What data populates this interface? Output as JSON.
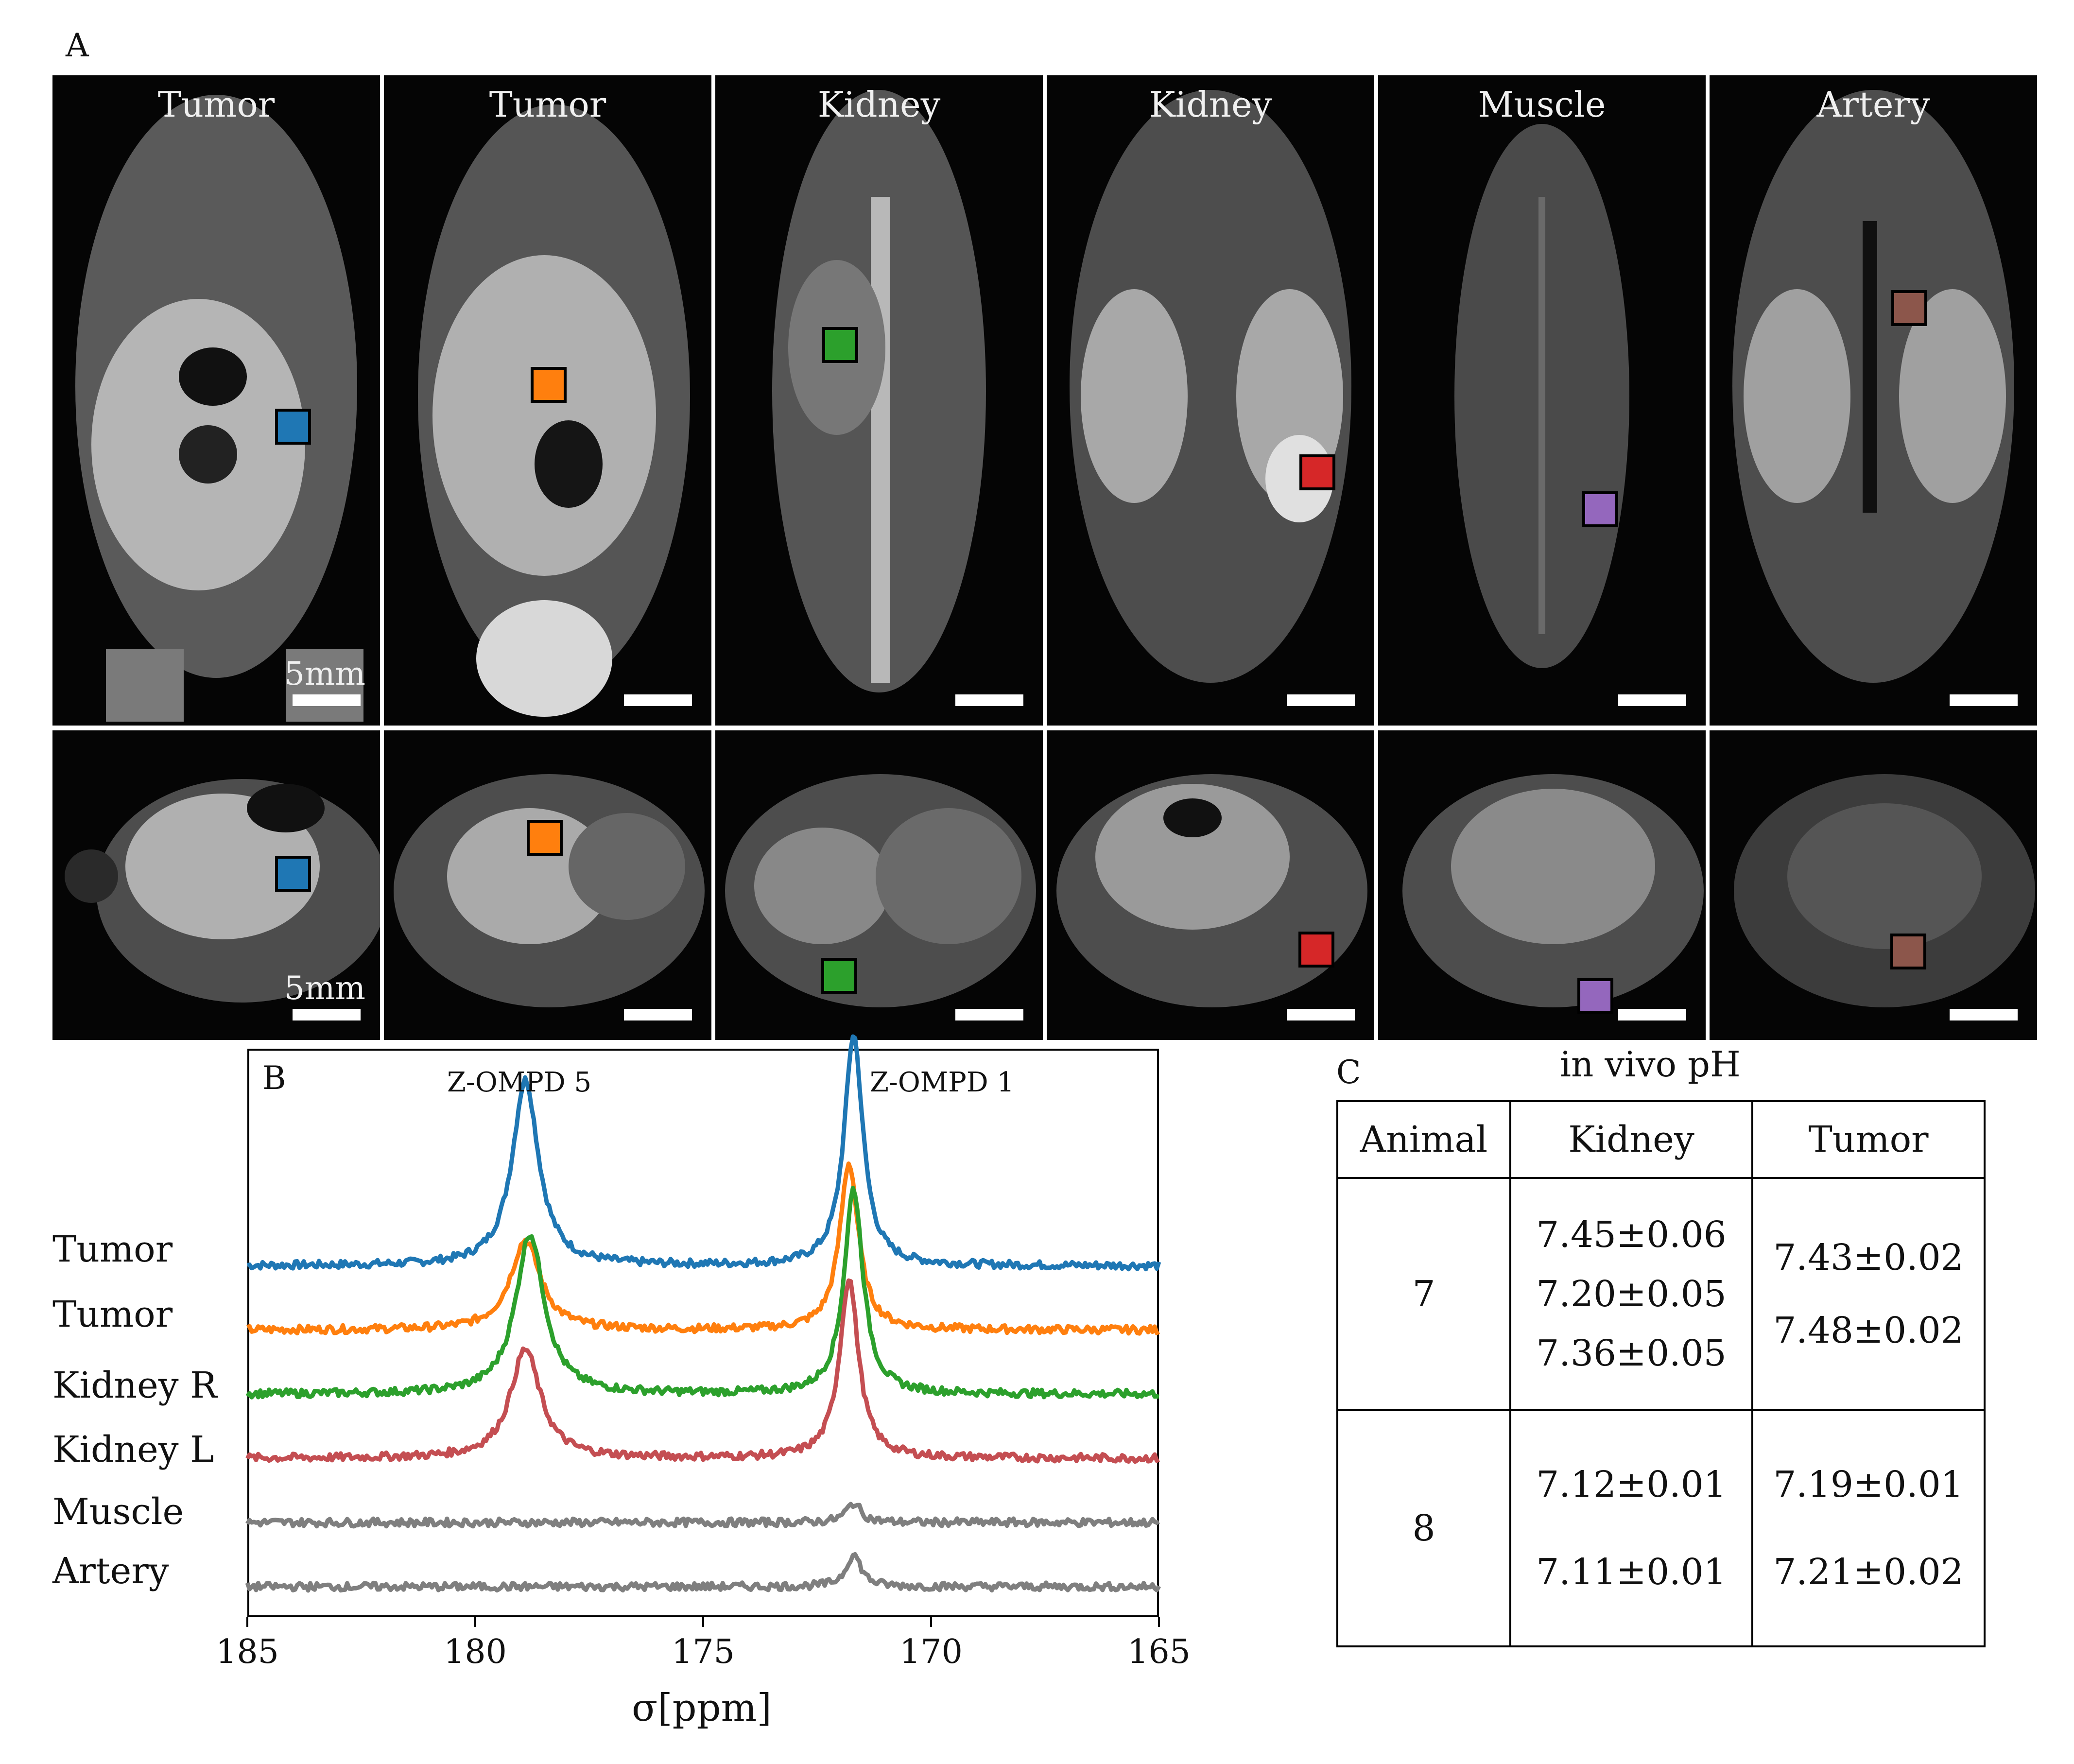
{
  "panel_a": {
    "letter": "A",
    "top_row_labels": [
      "Tumor",
      "Tumor",
      "Kidney",
      "Kidney",
      "Muscle",
      "Artery"
    ],
    "scale_label_top": "5mm",
    "scale_label_bottom": "5mm",
    "roi_colors": [
      "#1f77b4",
      "#ff7f0e",
      "#2ca02c",
      "#d62728",
      "#9467bd",
      "#8c564b"
    ]
  },
  "panel_b": {
    "letter": "B",
    "chart_data": {
      "type": "line",
      "title": "",
      "xlabel": "σ[ppm]",
      "ylabel": "",
      "xlim": [
        185,
        165
      ],
      "xticks": [
        "185",
        "180",
        "175",
        "170",
        "165"
      ],
      "grid": false,
      "annotations": [
        {
          "text": "Z-OMPD 5",
          "x": 178.9
        },
        {
          "text": "Z-OMPD 1",
          "x": 171.7
        }
      ],
      "series": [
        {
          "name": "Tumor",
          "color": "#1f77b4",
          "baseline": 5.0,
          "peaks": [
            {
              "x": 178.9,
              "height": 2.9,
              "width": 0.35
            },
            {
              "x": 171.7,
              "height": 3.6,
              "width": 0.25
            }
          ]
        },
        {
          "name": "Tumor",
          "color": "#ff7f0e",
          "baseline": 4.0,
          "peaks": [
            {
              "x": 178.9,
              "height": 1.4,
              "width": 0.4
            },
            {
              "x": 171.8,
              "height": 2.6,
              "width": 0.25
            }
          ]
        },
        {
          "name": "Kidney R",
          "color": "#2ca02c",
          "baseline": 3.0,
          "peaks": [
            {
              "x": 178.8,
              "height": 2.5,
              "width": 0.38
            },
            {
              "x": 171.7,
              "height": 3.2,
              "width": 0.25
            }
          ]
        },
        {
          "name": "Kidney L",
          "color": "#c44e52",
          "baseline": 2.0,
          "peaks": [
            {
              "x": 178.9,
              "height": 1.7,
              "width": 0.4
            },
            {
              "x": 171.8,
              "height": 2.8,
              "width": 0.25
            }
          ]
        },
        {
          "name": "Muscle",
          "color": "#7f7f7f",
          "baseline": 1.0,
          "peaks": [
            {
              "x": 171.7,
              "height": 0.3,
              "width": 0.2
            }
          ]
        },
        {
          "name": "Artery",
          "color": "#7f7f7f",
          "baseline": 0.0,
          "peaks": [
            {
              "x": 171.7,
              "height": 0.5,
              "width": 0.2
            }
          ]
        }
      ]
    }
  },
  "panel_c": {
    "letter": "C",
    "title": "in vivo pH",
    "headers": [
      "Animal",
      "Kidney",
      "Tumor"
    ],
    "rows": [
      {
        "animal": "7",
        "kidney": [
          "7.45±0.06",
          "7.20±0.05",
          "7.36±0.05"
        ],
        "tumor": [
          "7.43±0.02",
          "7.48±0.02"
        ]
      },
      {
        "animal": "8",
        "kidney": [
          "7.12±0.01",
          "7.11±0.01"
        ],
        "tumor": [
          "7.19±0.01",
          "7.21±0.02"
        ]
      }
    ]
  }
}
